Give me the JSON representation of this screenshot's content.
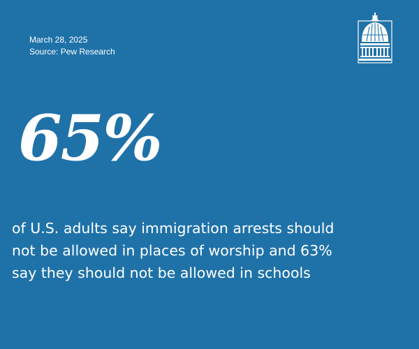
{
  "header": {
    "date": "March 28, 2025",
    "source": "Source: Pew Research"
  },
  "logo": {
    "icon": "capitol-dome-icon"
  },
  "stat": {
    "value": "65%",
    "lines": [
      "of U.S. adults say immigration arrests should",
      "not be allowed in places of worship and 63%",
      "say they should not be allowed in schools"
    ]
  },
  "colors": {
    "background": "#1f72a8",
    "text": "#ffffff"
  }
}
